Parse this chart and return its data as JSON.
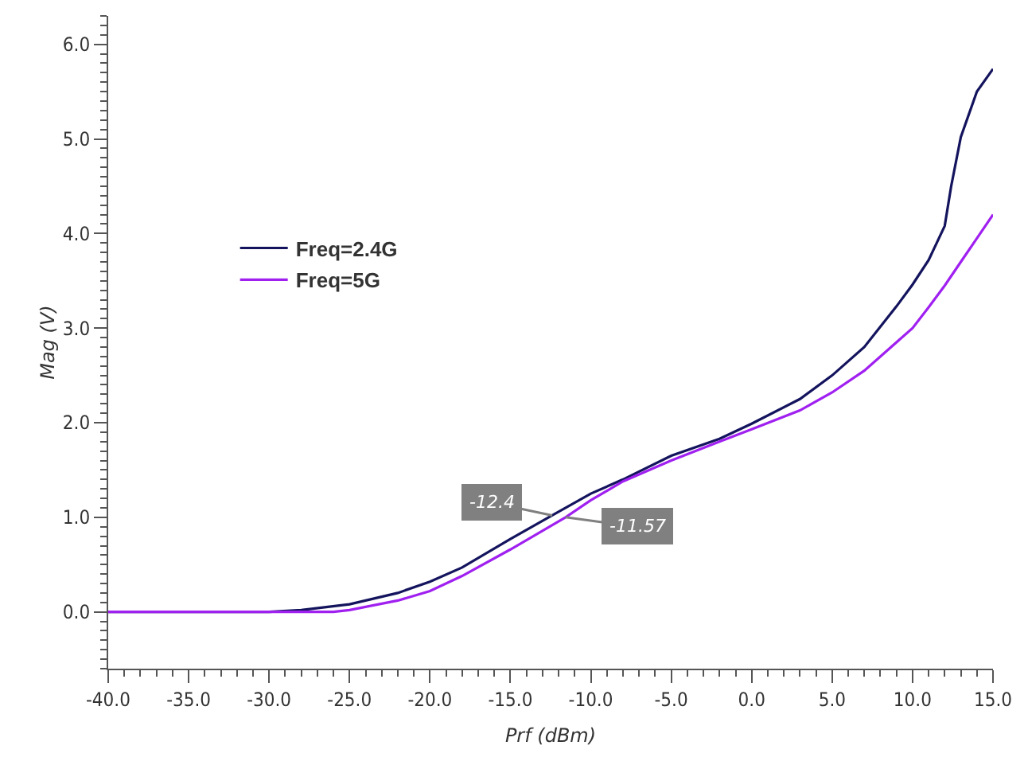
{
  "chart_data": {
    "type": "line",
    "xlabel": "Prf (dBm)",
    "ylabel": "Mag (V)",
    "xlim": [
      -40,
      15
    ],
    "ylim": [
      -0.6,
      6.3
    ],
    "xticks": [
      {
        "value": -40,
        "label": "-40.0"
      },
      {
        "value": -35,
        "label": "-35.0"
      },
      {
        "value": -30,
        "label": "-30.0"
      },
      {
        "value": -25,
        "label": "-25.0"
      },
      {
        "value": -20,
        "label": "-20.0"
      },
      {
        "value": -15,
        "label": "-15.0"
      },
      {
        "value": -10,
        "label": "-10.0"
      },
      {
        "value": -5,
        "label": "-5.0"
      },
      {
        "value": 0,
        "label": "0.0"
      },
      {
        "value": 5,
        "label": "5.0"
      },
      {
        "value": 10,
        "label": "10.0"
      },
      {
        "value": 15,
        "label": "15.0"
      }
    ],
    "yticks": [
      {
        "value": 0,
        "label": "0.0"
      },
      {
        "value": 1,
        "label": "1.0"
      },
      {
        "value": 2,
        "label": "2.0"
      },
      {
        "value": 3,
        "label": "3.0"
      },
      {
        "value": 4,
        "label": "4.0"
      },
      {
        "value": 5,
        "label": "5.0"
      },
      {
        "value": 6,
        "label": "6.0"
      }
    ],
    "grid": false,
    "legend": "left",
    "marker": "none",
    "line_style": "solid",
    "series": [
      {
        "name": "Freq=2.4G",
        "color": "#14145e",
        "x": [
          -40,
          -30,
          -28,
          -25,
          -22,
          -20,
          -18,
          -15,
          -12.4,
          -10,
          -8,
          -5,
          -2,
          0,
          3,
          5,
          7,
          9,
          10,
          11,
          12,
          12.4,
          13,
          14,
          15
        ],
        "values": [
          0,
          0,
          0.02,
          0.08,
          0.2,
          0.32,
          0.47,
          0.77,
          1.02,
          1.25,
          1.4,
          1.65,
          1.83,
          1.99,
          2.25,
          2.5,
          2.8,
          3.23,
          3.46,
          3.72,
          4.08,
          4.5,
          5.02,
          5.5,
          5.74
        ]
      },
      {
        "name": "Freq=5G",
        "color": "#a020f0",
        "x": [
          -40,
          -26,
          -25,
          -22,
          -20,
          -18,
          -15,
          -11.57,
          -10,
          -8,
          -5,
          -2,
          0,
          3,
          5,
          7,
          9,
          10,
          11,
          12,
          13,
          14,
          15
        ],
        "values": [
          0,
          0,
          0.02,
          0.12,
          0.22,
          0.38,
          0.66,
          1.0,
          1.18,
          1.38,
          1.6,
          1.8,
          1.93,
          2.13,
          2.32,
          2.55,
          2.85,
          3.0,
          3.22,
          3.45,
          3.7,
          3.95,
          4.2
        ]
      }
    ],
    "annotations": [
      {
        "text": "-12.4",
        "x": -12.4,
        "y": 1.02
      },
      {
        "text": "-11.57",
        "x": -11.57,
        "y": 1.0
      }
    ]
  }
}
